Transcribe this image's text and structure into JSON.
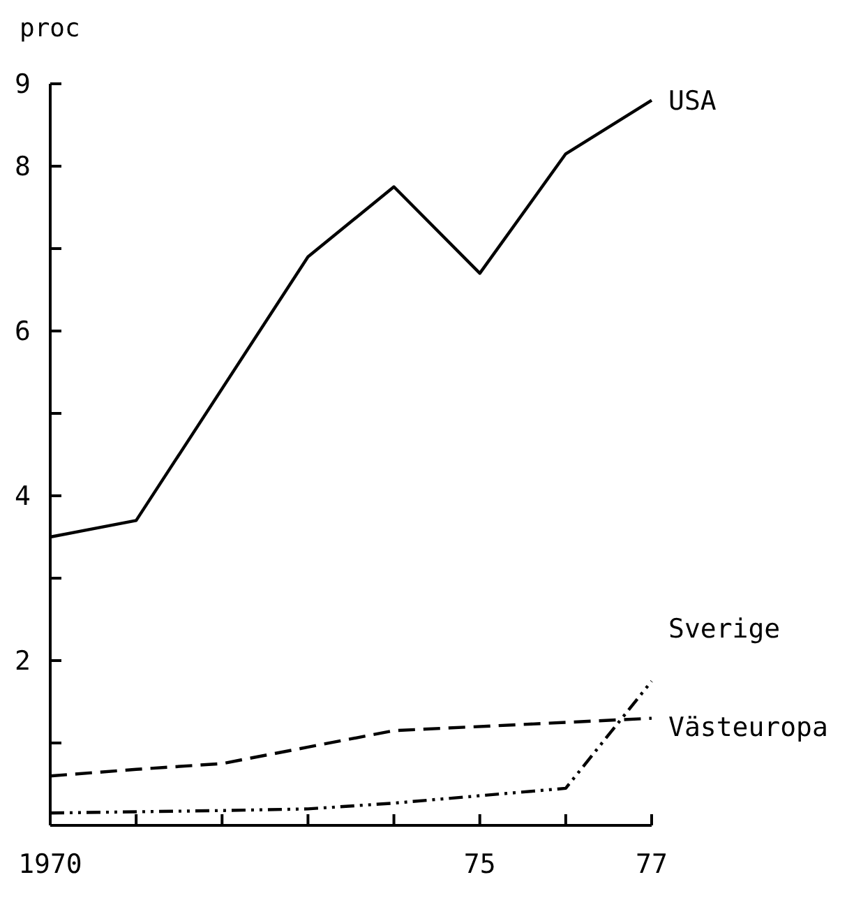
{
  "chart_data": {
    "type": "line",
    "ylabel": "proc",
    "xlim": [
      1970,
      1977
    ],
    "ylim": [
      0,
      9
    ],
    "xticks": [
      {
        "value": 1970,
        "label": "1970"
      },
      {
        "value": 1971,
        "label": null
      },
      {
        "value": 1972,
        "label": null
      },
      {
        "value": 1973,
        "label": null
      },
      {
        "value": 1974,
        "label": null
      },
      {
        "value": 1975,
        "label": "75"
      },
      {
        "value": 1976,
        "label": null
      },
      {
        "value": 1977,
        "label": "77"
      }
    ],
    "yticks": [
      {
        "value": 1,
        "label": null
      },
      2,
      {
        "value": 3,
        "label": null
      },
      4,
      {
        "value": 5,
        "label": null
      },
      6,
      {
        "value": 7,
        "label": null
      },
      8,
      9
    ],
    "grid": false,
    "legend": false,
    "marker": "none",
    "series": [
      {
        "name": "USA",
        "color": "#000000",
        "line_style": "solid",
        "x": [
          1970,
          1971,
          1973,
          1974,
          1975,
          1976,
          1977
        ],
        "values": [
          3.5,
          3.7,
          6.9,
          7.75,
          6.7,
          8.15,
          8.8
        ]
      },
      {
        "name": "Sverige",
        "color": "#000000",
        "line_style": "dashdot",
        "x": [
          1970,
          1972,
          1973,
          1974,
          1976,
          1977
        ],
        "values": [
          0.15,
          0.18,
          0.2,
          0.27,
          0.45,
          1.75
        ]
      },
      {
        "name": "Västeuropa",
        "color": "#000000",
        "line_style": "dashed",
        "x": [
          1970,
          1971,
          1972,
          1973,
          1974,
          1976,
          1977
        ],
        "values": [
          0.6,
          0.68,
          0.75,
          0.95,
          1.15,
          1.25,
          1.3
        ]
      }
    ]
  }
}
